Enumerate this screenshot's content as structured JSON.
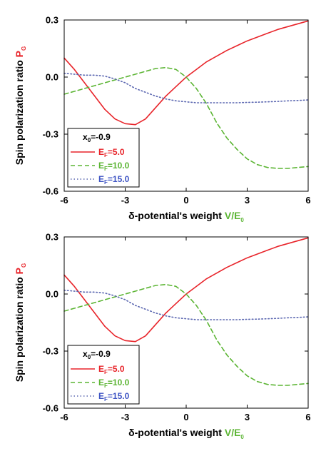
{
  "chart_data": [
    {
      "type": "line",
      "xlabel": {
        "prefix": "δ-potential's weight ",
        "V": "V",
        "slash": "/",
        "E": "E",
        "E_sub": "0"
      },
      "ylabel": {
        "text": "Spin polarization ratio ",
        "P": "P",
        "P_sub": "G"
      },
      "xlim": [
        -6,
        6
      ],
      "ylim": [
        -0.6,
        0.3
      ],
      "xticks": [
        -6,
        -3,
        0,
        3,
        6
      ],
      "xtick_labels": [
        "-6",
        "-3",
        "0",
        "3",
        "6"
      ],
      "yticks": [
        0.3,
        0.0,
        -0.3,
        -0.6
      ],
      "ytick_labels": [
        "0.3",
        "0.0",
        "-0.3",
        "-0.6"
      ],
      "legend": {
        "placement": "bottom-left",
        "title": {
          "x": "x",
          "sub": "0",
          "val": "=-0.9"
        },
        "entries": [
          {
            "E": "E",
            "sub": "F",
            "val": "=5.0"
          },
          {
            "E": "E",
            "sub": "F",
            "val": "=10.0"
          },
          {
            "E": "E",
            "sub": "F",
            "val": "=15.0"
          }
        ]
      },
      "x": [
        -6,
        -5.5,
        -5,
        -4.5,
        -4,
        -3.5,
        -3,
        -2.5,
        -2,
        -1.5,
        -1,
        -0.5,
        0,
        0.5,
        1,
        1.5,
        2,
        2.5,
        3,
        3.5,
        4,
        4.5,
        5,
        5.5,
        6
      ],
      "series": [
        {
          "name": "EF=5.0",
          "color": "#e8242a",
          "dash": "solid",
          "values": [
            0.1,
            0.04,
            -0.03,
            -0.1,
            -0.17,
            -0.22,
            -0.245,
            -0.25,
            -0.22,
            -0.16,
            -0.1,
            -0.05,
            0.0,
            0.04,
            0.08,
            0.11,
            0.14,
            0.165,
            0.19,
            0.21,
            0.23,
            0.25,
            0.265,
            0.28,
            0.295
          ]
        },
        {
          "name": "EF=10.0",
          "color": "#5cb534",
          "dash": "dashed",
          "values": [
            -0.09,
            -0.075,
            -0.06,
            -0.045,
            -0.03,
            -0.015,
            0.0,
            0.015,
            0.03,
            0.045,
            0.05,
            0.04,
            0.0,
            -0.06,
            -0.14,
            -0.24,
            -0.32,
            -0.38,
            -0.43,
            -0.46,
            -0.475,
            -0.48,
            -0.48,
            -0.475,
            -0.47
          ]
        },
        {
          "name": "EF=15.0",
          "color": "#5a66b0",
          "dash": "dotted",
          "values": [
            0.02,
            0.015,
            0.01,
            0.01,
            0.005,
            -0.01,
            -0.03,
            -0.06,
            -0.08,
            -0.1,
            -0.115,
            -0.125,
            -0.13,
            -0.135,
            -0.135,
            -0.135,
            -0.135,
            -0.135,
            -0.133,
            -0.132,
            -0.13,
            -0.128,
            -0.125,
            -0.123,
            -0.12
          ]
        }
      ]
    },
    {
      "type": "line",
      "xlabel": {
        "prefix": "δ-potential's weight ",
        "V": "V",
        "slash": "/",
        "E": "E",
        "E_sub": "0"
      },
      "ylabel": {
        "text": "Spin polarization ratio ",
        "P": "P",
        "P_sub": "G"
      },
      "xlim": [
        -6,
        6
      ],
      "ylim": [
        -0.6,
        0.3
      ],
      "xticks": [
        -6,
        -3,
        0,
        3,
        6
      ],
      "xtick_labels": [
        "-6",
        "-3",
        "0",
        "3",
        "6"
      ],
      "yticks": [
        0.3,
        0.0,
        -0.3,
        -0.6
      ],
      "ytick_labels": [
        "0.3",
        "0.0",
        "-0.3",
        "-0.6"
      ],
      "legend": {
        "placement": "bottom-left",
        "title": {
          "x": "x",
          "sub": "0",
          "val": "=-0.9"
        },
        "entries": [
          {
            "E": "E",
            "sub": "F",
            "val": "=5.0"
          },
          {
            "E": "E",
            "sub": "F",
            "val": "=10.0"
          },
          {
            "E": "E",
            "sub": "F",
            "val": "=15.0"
          }
        ]
      },
      "x": [
        -6,
        -5.5,
        -5,
        -4.5,
        -4,
        -3.5,
        -3,
        -2.5,
        -2,
        -1.5,
        -1,
        -0.5,
        0,
        0.5,
        1,
        1.5,
        2,
        2.5,
        3,
        3.5,
        4,
        4.5,
        5,
        5.5,
        6
      ],
      "series": [
        {
          "name": "EF=5.0",
          "color": "#e8242a",
          "dash": "solid",
          "values": [
            0.1,
            0.04,
            -0.03,
            -0.1,
            -0.17,
            -0.22,
            -0.245,
            -0.25,
            -0.22,
            -0.16,
            -0.1,
            -0.05,
            0.0,
            0.04,
            0.08,
            0.11,
            0.14,
            0.165,
            0.19,
            0.21,
            0.23,
            0.25,
            0.265,
            0.28,
            0.295
          ]
        },
        {
          "name": "EF=10.0",
          "color": "#5cb534",
          "dash": "dashed",
          "values": [
            -0.09,
            -0.075,
            -0.06,
            -0.045,
            -0.03,
            -0.015,
            0.0,
            0.015,
            0.03,
            0.045,
            0.05,
            0.04,
            0.0,
            -0.06,
            -0.14,
            -0.24,
            -0.32,
            -0.38,
            -0.43,
            -0.46,
            -0.475,
            -0.48,
            -0.48,
            -0.475,
            -0.47
          ]
        },
        {
          "name": "EF=15.0",
          "color": "#5a66b0",
          "dash": "dotted",
          "values": [
            0.02,
            0.015,
            0.01,
            0.01,
            0.005,
            -0.01,
            -0.03,
            -0.06,
            -0.08,
            -0.1,
            -0.115,
            -0.125,
            -0.13,
            -0.135,
            -0.135,
            -0.135,
            -0.135,
            -0.135,
            -0.133,
            -0.132,
            -0.13,
            -0.128,
            -0.125,
            -0.123,
            -0.12
          ]
        }
      ]
    }
  ]
}
